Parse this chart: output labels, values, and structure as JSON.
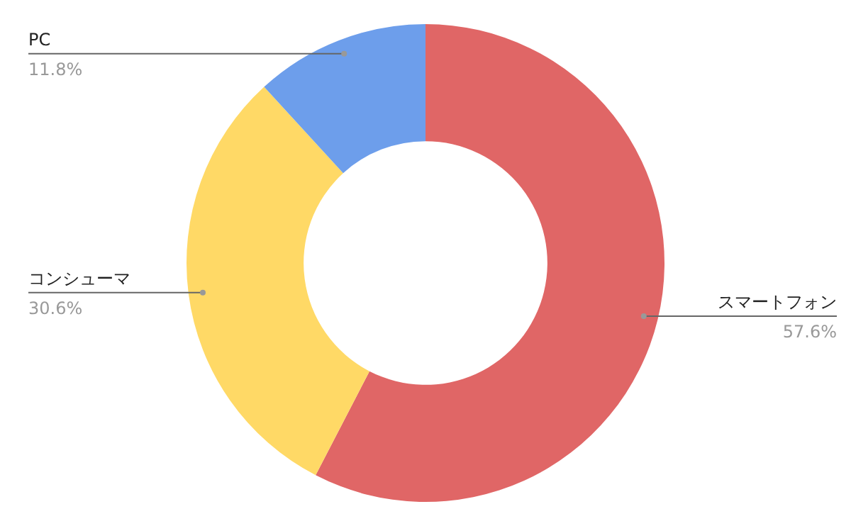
{
  "chart_data": {
    "type": "donut",
    "categories": [
      "スマートフォン",
      "コンシューマ",
      "PC"
    ],
    "values": [
      57.6,
      30.6,
      11.8
    ],
    "colors": [
      "#e06666",
      "#ffd966",
      "#6d9eeb"
    ],
    "value_labels": [
      "57.6%",
      "30.6%",
      "11.8%"
    ],
    "legend": false
  }
}
